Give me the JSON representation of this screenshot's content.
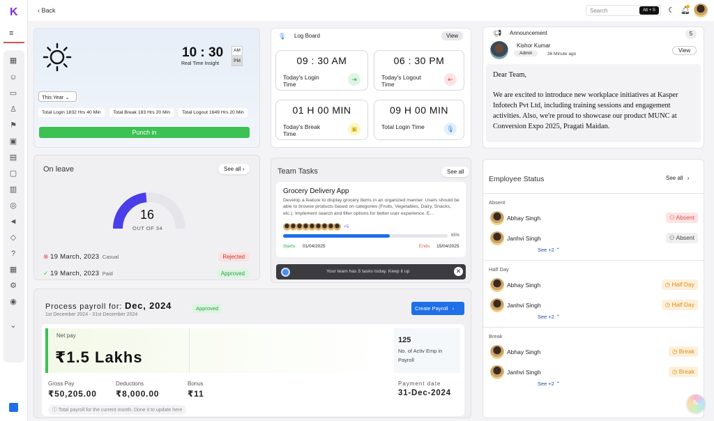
{
  "app": {
    "logo_letter": "K"
  },
  "topbar": {
    "back_label": "Back",
    "search_placeholder": "Search",
    "shortcut": "Alt + S"
  },
  "clock": {
    "time": "10 : 30",
    "am": "AM",
    "pm": "PM",
    "caption": "Real Time Insight",
    "period_select": "This Year",
    "total_login": "Total Login 1832 Hrs 40 Min",
    "total_break": "Total Break 183 Hrs 20 Min",
    "total_logout": "Total Logout 1649 Hrs 20 Min",
    "punch_label": "Punch in"
  },
  "logboard": {
    "title": "Log Board",
    "view_label": "View",
    "items": [
      {
        "value": "09 : 30  AM",
        "label": "Today's Login Time"
      },
      {
        "value": "06 : 30  PM",
        "label": "Today's Logout Time"
      },
      {
        "value": "01 H 00 MIN",
        "label": "Today's Break Time"
      },
      {
        "value": "09 H 00 MIN",
        "label": "Total Login Time"
      }
    ]
  },
  "announcement": {
    "title": "Announcement",
    "count": "5",
    "author": "Kishor Kumar",
    "role": "Admin",
    "time": "36 Minute ago",
    "view_label": "View",
    "greeting": "Dear Team,",
    "body": "We are excited to introduce new workplace initiatives at Kasper Infotech Pvt Ltd, including training sessions and engagement activities. Also, we're proud to showcase our product MUNC at Conversion Expo 2025, Pragati Maidan."
  },
  "leave": {
    "title": "On leave",
    "see_all": "See all",
    "count": "16",
    "out_of": "OUT OF 34",
    "fraction": 0.47,
    "items": [
      {
        "date": "19 March, 2023",
        "type": "Casual",
        "status": "Rejected",
        "mark": "⊗"
      },
      {
        "date": "19 March, 2023",
        "type": "Paid",
        "status": "Approved",
        "mark": "✓"
      }
    ]
  },
  "tasks": {
    "title": "Team Tasks",
    "see_all": "See all",
    "task_title": "Grocery Delivery App",
    "task_desc": "Develop a feature to display grocery items in an organized manner. Users should be able to browse products based on categories (Fruits, Vegetables, Dairy, Snacks, etc.). Implement search and filter options for better user experience. E...",
    "extra_members": "+5",
    "progress": "65%",
    "progress_fraction": 0.65,
    "starts_label": "Starts:",
    "start_date": "01/04/2025",
    "ends_label": "Ends:",
    "end_date": "15/04/2025",
    "toast": "Your team has 5 tasks today. Keep it up"
  },
  "employee_status": {
    "title": "Employee Status",
    "see_all": "See all",
    "groups": [
      {
        "name": "Absent",
        "see_more": "See +2",
        "rows": [
          {
            "name": "Abhay Singh",
            "status": "Absent"
          },
          {
            "name": "Janhvi Singh",
            "status": "Absent"
          }
        ]
      },
      {
        "name": "Half Day",
        "see_more": "See +2",
        "rows": [
          {
            "name": "Abhay Singh",
            "status": "Half Day"
          },
          {
            "name": "Janhvi Singh",
            "status": "Half Day"
          }
        ]
      },
      {
        "name": "Break",
        "see_more": "See +2",
        "rows": [
          {
            "name": "Abhay Singh",
            "status": "Break"
          },
          {
            "name": "Janhvi Singh",
            "status": "Break"
          }
        ]
      }
    ]
  },
  "payroll": {
    "title_prefix": "Process payroll for:",
    "month": "Dec, 2024",
    "badge": "Approved",
    "range": "1st December 2024 - 31st December 2024",
    "create_label": "Create Payroll",
    "net_pay_label": "Net pay",
    "net_pay": "₹1.5 Lakhs",
    "emp_count": "125",
    "emp_label": "No. of Activ Emp in Payroll",
    "gross_label": "Gross Pay",
    "gross": "₹50,205.00",
    "deductions_label": "Deductions",
    "deductions": "₹8,000.00",
    "bonus_label": "Bonus",
    "bonus": "₹11",
    "payment_label": "Payment date",
    "payment_date": "31-Dec-2024",
    "note": "Total payroll for the current month. Done it to update here"
  },
  "colors": {
    "green": "#3cc153",
    "blue": "#1e6fe8",
    "gauge": "#4a3ee8",
    "red": "#d9534f"
  }
}
